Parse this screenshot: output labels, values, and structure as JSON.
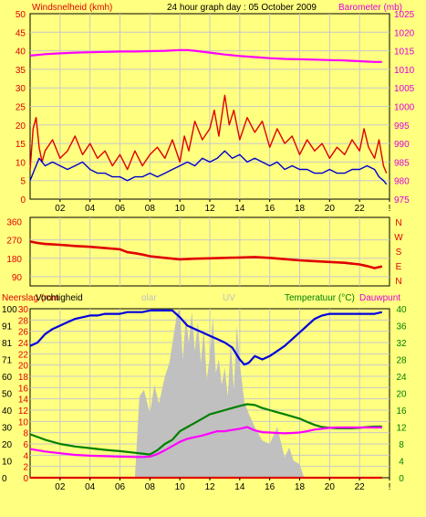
{
  "title": "24 hour graph day : 05 October 2009",
  "chart_data": [
    {
      "type": "line",
      "panel": "wind-barometer",
      "left_label": "Windsnelheid (kmh)",
      "right_label": "Barometer (mb)",
      "x_tick_labels": [
        "02",
        "04",
        "06",
        "08",
        "10",
        "12",
        "14",
        "16",
        "18",
        "20",
        "22",
        "!"
      ],
      "x_range": [
        0,
        24
      ],
      "left_ticks": [
        "0",
        "5",
        "10",
        "15",
        "20",
        "25",
        "30",
        "35",
        "40",
        "45",
        "50"
      ],
      "left_range": [
        0,
        50
      ],
      "right_ticks": [
        "975",
        "980",
        "985",
        "990",
        "995",
        "1000",
        "1005",
        "1010",
        "1015",
        "1020",
        "1025"
      ],
      "right_range": [
        975,
        1025
      ],
      "series": [
        {
          "color": "#ff00ff",
          "axis": "right",
          "x": [
            0,
            1,
            2,
            3,
            4,
            5,
            6,
            7,
            8,
            9,
            10,
            10.5,
            11,
            12,
            13,
            14,
            15,
            16,
            17,
            18,
            19,
            20,
            21,
            22,
            23,
            23.5
          ],
          "y": [
            1013.7,
            1014.1,
            1014.3,
            1014.5,
            1014.6,
            1014.7,
            1014.8,
            1014.8,
            1014.9,
            1015.0,
            1015.2,
            1015.2,
            1015.0,
            1014.5,
            1014.0,
            1013.6,
            1013.3,
            1013.0,
            1012.8,
            1012.7,
            1012.6,
            1012.5,
            1012.4,
            1012.2,
            1012.0,
            1012.0
          ]
        },
        {
          "color": "#e00000",
          "axis": "left",
          "x": [
            0,
            0.2,
            0.4,
            0.6,
            0.8,
            1,
            1.5,
            2,
            2.5,
            3,
            3.5,
            4,
            4.5,
            5,
            5.5,
            6,
            6.5,
            7,
            7.5,
            8,
            8.5,
            9,
            9.5,
            10,
            10.3,
            10.6,
            11,
            11.5,
            12,
            12.3,
            12.6,
            13,
            13.3,
            13.6,
            14,
            14.5,
            15,
            15.5,
            16,
            16.5,
            17,
            17.5,
            18,
            18.5,
            19,
            19.5,
            20,
            20.5,
            21,
            21.5,
            22,
            22.3,
            22.6,
            23,
            23.3,
            23.6,
            23.8
          ],
          "y": [
            8,
            19,
            22,
            14,
            10,
            13,
            16,
            11,
            13,
            17,
            12,
            15,
            11,
            13,
            9,
            12,
            8,
            13,
            9,
            12,
            14,
            11,
            16,
            10,
            17,
            13,
            21,
            16,
            19,
            24,
            17,
            28,
            20,
            24,
            16,
            22,
            18,
            21,
            14,
            19,
            15,
            17,
            12,
            16,
            13,
            15,
            11,
            14,
            12,
            16,
            13,
            19,
            14,
            11,
            16,
            9,
            7
          ]
        },
        {
          "color": "#0000cc",
          "axis": "left",
          "x": [
            0,
            0.3,
            0.6,
            1,
            1.5,
            2,
            2.5,
            3,
            3.5,
            4,
            4.5,
            5,
            5.5,
            6,
            6.5,
            7,
            7.5,
            8,
            8.5,
            9,
            9.5,
            10,
            10.5,
            11,
            11.5,
            12,
            12.5,
            13,
            13.5,
            14,
            14.5,
            15,
            15.5,
            16,
            16.5,
            17,
            17.5,
            18,
            18.5,
            19,
            19.5,
            20,
            20.5,
            21,
            21.5,
            22,
            22.5,
            23,
            23.3,
            23.6,
            23.8
          ],
          "y": [
            5,
            8,
            11,
            9,
            10,
            9,
            8,
            9,
            10,
            8,
            7,
            7,
            6,
            6,
            5,
            6,
            6,
            7,
            6,
            7,
            8,
            9,
            10,
            9,
            11,
            10,
            11,
            13,
            11,
            12,
            10,
            11,
            10,
            9,
            10,
            8,
            9,
            8,
            8,
            7,
            7,
            8,
            7,
            7,
            8,
            8,
            9,
            8,
            6,
            5,
            4
          ]
        }
      ]
    },
    {
      "type": "line",
      "panel": "wind-direction",
      "left_ticks": [
        "90",
        "180",
        "270",
        "360"
      ],
      "left_range": [
        45,
        380
      ],
      "right_labels": [
        "N",
        "W",
        "S",
        "E",
        "N"
      ],
      "series": [
        {
          "color": "#e00000",
          "x": [
            0,
            0.5,
            1,
            2,
            3,
            4,
            5,
            6,
            6.5,
            7,
            7.5,
            8,
            9,
            10,
            11,
            12,
            13,
            14,
            15,
            16,
            17,
            18,
            19,
            20,
            21,
            22,
            22.5,
            23,
            23.5
          ],
          "y": [
            262,
            255,
            250,
            246,
            240,
            236,
            230,
            224,
            210,
            205,
            198,
            190,
            182,
            175,
            178,
            180,
            182,
            184,
            186,
            182,
            176,
            170,
            166,
            162,
            158,
            150,
            142,
            132,
            140
          ]
        }
      ]
    },
    {
      "type": "line",
      "panel": "rain-humidity-solar-temperature",
      "labels": [
        "Neerslag (mm",
        "Vochtigheid",
        "olar",
        "UV",
        "Temperatuur (°C)",
        "Dauwpunt"
      ],
      "rain_ticks": [
        "0",
        "2",
        "4",
        "6",
        "8",
        "10",
        "12",
        "14",
        "16",
        "18",
        "20",
        "22",
        "24",
        "26",
        "28",
        "30"
      ],
      "rain_range": [
        0,
        30
      ],
      "humidity_ticks": [
        "0",
        "10",
        "20",
        "30",
        "40",
        "50",
        "60",
        "71",
        "81",
        "91",
        "100"
      ],
      "humidity_range": [
        0,
        100
      ],
      "temperature_ticks": [
        "0",
        "4",
        "8",
        "12",
        "16",
        "20",
        "24",
        "28",
        "32",
        "36",
        "40"
      ],
      "temperature_range": [
        0,
        40
      ],
      "series": [
        {
          "color": "#c0c0c0",
          "type": "area",
          "axis": "humidity",
          "x": [
            7,
            7.3,
            7.6,
            8,
            8.3,
            8.6,
            9,
            9.3,
            9.6,
            9.8,
            10,
            10.2,
            10.4,
            10.6,
            10.8,
            11,
            11.2,
            11.4,
            11.6,
            11.8,
            12,
            12.2,
            12.4,
            12.6,
            12.8,
            13,
            13.2,
            13.4,
            13.6,
            13.8,
            14,
            14.3,
            14.6,
            15,
            15.5,
            16,
            16.5,
            17,
            17.3,
            17.6,
            18,
            18.3
          ],
          "y": [
            0,
            48,
            52,
            38,
            55,
            44,
            60,
            68,
            85,
            97,
            100,
            70,
            95,
            80,
            98,
            75,
            92,
            68,
            88,
            58,
            72,
            95,
            62,
            70,
            55,
            65,
            48,
            80,
            52,
            90,
            68,
            45,
            38,
            30,
            22,
            20,
            30,
            12,
            18,
            10,
            8,
            0
          ]
        },
        {
          "color": "#0000dd",
          "axis": "humidity",
          "x": [
            0,
            0.5,
            1,
            1.5,
            2,
            2.5,
            3,
            3.5,
            4,
            4.5,
            5,
            5.5,
            6,
            6.5,
            7,
            7.5,
            8,
            8.5,
            9,
            9.5,
            10,
            10.5,
            11,
            11.5,
            12,
            12.5,
            13,
            13.5,
            14,
            14.3,
            14.6,
            15,
            15.5,
            16,
            16.5,
            17,
            17.5,
            18,
            18.5,
            19,
            19.5,
            20,
            20.5,
            21,
            21.5,
            22,
            22.5,
            23,
            23.5
          ],
          "y": [
            78,
            80,
            85,
            88,
            90,
            92,
            94,
            95,
            96,
            96,
            97,
            97,
            97,
            98,
            98,
            98,
            99,
            99,
            99,
            99,
            95,
            90,
            88,
            86,
            84,
            82,
            80,
            77,
            70,
            67,
            68,
            72,
            70,
            72,
            75,
            78,
            82,
            86,
            90,
            94,
            96,
            97,
            97,
            97,
            97,
            97,
            97,
            97,
            98
          ]
        },
        {
          "color": "#008000",
          "axis": "temperature",
          "x": [
            0,
            1,
            2,
            3,
            4,
            5,
            6,
            7,
            7.5,
            8,
            8.5,
            9,
            9.5,
            10,
            10.5,
            11,
            11.5,
            12,
            12.5,
            13,
            13.5,
            14,
            14.5,
            15,
            15.5,
            16,
            16.5,
            17,
            17.5,
            18,
            18.5,
            19,
            19.5,
            20,
            20.5,
            21,
            21.5,
            22,
            22.5,
            23,
            23.5
          ],
          "y": [
            10.3,
            9,
            8,
            7.4,
            7,
            6.6,
            6.3,
            5.9,
            5.7,
            5.5,
            6.5,
            8,
            9,
            11,
            12,
            13,
            14,
            15,
            15.5,
            16,
            16.5,
            17,
            17.4,
            17.2,
            16.5,
            16,
            15.5,
            15,
            14.5,
            14,
            13.2,
            12.5,
            12,
            11.8,
            11.7,
            11.7,
            11.7,
            11.8,
            12,
            12.1,
            12.1
          ]
        },
        {
          "color": "#ff00ff",
          "axis": "temperature",
          "x": [
            0,
            1,
            2,
            3,
            4,
            5,
            6,
            7,
            7.5,
            8,
            8.5,
            9,
            9.5,
            10,
            10.5,
            11,
            11.5,
            12,
            12.5,
            13,
            13.5,
            14,
            14.5,
            15,
            15.5,
            16,
            16.5,
            17,
            17.5,
            18,
            18.5,
            19,
            19.5,
            20,
            20.5,
            21,
            21.5,
            22,
            22.5,
            23,
            23.5
          ],
          "y": [
            6.8,
            6.2,
            5.8,
            5.4,
            5.2,
            5.1,
            5,
            4.9,
            4.9,
            5,
            5.6,
            6.5,
            7.5,
            8.5,
            9.2,
            9.6,
            10,
            10.5,
            11,
            11,
            11.3,
            11.6,
            12,
            11.2,
            10.8,
            10.7,
            10.6,
            10.5,
            10.6,
            10.7,
            11,
            11.4,
            11.6,
            11.8,
            11.9,
            11.9,
            11.9,
            11.9,
            11.9,
            11.9,
            11.9
          ]
        },
        {
          "color": "#e00000",
          "axis": "rain",
          "x": [
            0,
            23.5
          ],
          "y": [
            0,
            0
          ]
        }
      ]
    }
  ]
}
